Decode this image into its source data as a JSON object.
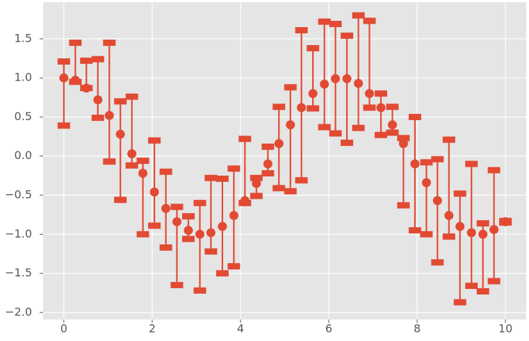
{
  "chart_data": {
    "type": "errorbar",
    "x": [
      0.0,
      0.26,
      0.51,
      0.77,
      1.03,
      1.28,
      1.54,
      1.79,
      2.05,
      2.31,
      2.56,
      2.82,
      3.08,
      3.33,
      3.59,
      3.85,
      4.1,
      4.36,
      4.62,
      4.87,
      5.13,
      5.38,
      5.64,
      5.9,
      6.15,
      6.41,
      6.67,
      6.92,
      7.18,
      7.44,
      7.69,
      7.95,
      8.21,
      8.46,
      8.72,
      8.97,
      9.23,
      9.49,
      9.74,
      10.0
    ],
    "series": [
      {
        "color": "#e24a33",
        "values": [
          1.0,
          0.97,
          0.87,
          0.72,
          0.52,
          0.28,
          0.03,
          -0.22,
          -0.46,
          -0.67,
          -0.84,
          -0.95,
          -1.0,
          -0.98,
          -0.9,
          -0.76,
          -0.57,
          -0.35,
          -0.1,
          0.16,
          0.4,
          0.62,
          0.8,
          0.92,
          0.99,
          0.99,
          0.93,
          0.8,
          0.62,
          0.4,
          0.16,
          -0.1,
          -0.34,
          -0.57,
          -0.76,
          -0.9,
          -0.98,
          -1.0,
          -0.94,
          -0.84
        ],
        "lower": [
          0.39,
          0.95,
          0.87,
          0.49,
          -0.07,
          -0.56,
          -0.12,
          -1.0,
          -0.89,
          -1.17,
          -1.65,
          -1.06,
          -1.72,
          -1.22,
          -1.5,
          -1.41,
          -0.6,
          -0.51,
          -0.22,
          -0.41,
          -0.45,
          -0.31,
          0.61,
          0.37,
          0.29,
          0.17,
          0.36,
          0.62,
          0.27,
          0.3,
          -0.63,
          -0.95,
          -1.0,
          -1.36,
          -1.03,
          -1.87,
          -1.66,
          -1.73,
          -1.6,
          -0.85
        ],
        "upper": [
          1.21,
          1.45,
          1.22,
          1.24,
          1.45,
          0.7,
          0.76,
          -0.06,
          0.2,
          -0.2,
          -0.65,
          -0.77,
          -0.6,
          -0.28,
          -0.29,
          -0.16,
          0.22,
          -0.28,
          0.12,
          0.63,
          0.88,
          1.61,
          1.38,
          1.72,
          1.69,
          1.54,
          1.8,
          1.73,
          0.8,
          0.63,
          0.23,
          0.5,
          -0.08,
          -0.04,
          0.21,
          -0.48,
          -0.1,
          -0.86,
          -0.18,
          -0.83
        ]
      }
    ],
    "xlim": [
      -0.47,
      10.47
    ],
    "ylim": [
      -2.09,
      1.97
    ],
    "xticks": [
      0,
      2,
      4,
      6,
      8,
      10
    ],
    "yticks": [
      {
        "value": -2.0,
        "label": "−2.0"
      },
      {
        "value": -1.5,
        "label": "−1.5"
      },
      {
        "value": -1.0,
        "label": "−1.0"
      },
      {
        "value": -0.5,
        "label": "−0.5"
      },
      {
        "value": 0.0,
        "label": "0.0"
      },
      0.5,
      {
        "value": 1.0,
        "label": "1.0"
      },
      1.5
    ],
    "grid": true
  }
}
